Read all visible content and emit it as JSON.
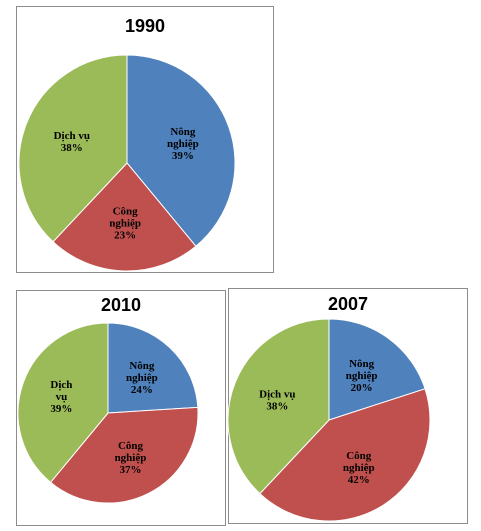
{
  "chart_data": [
    {
      "type": "pie",
      "title": "1990",
      "slices": [
        {
          "label": [
            "Nông",
            "nghiệp",
            "39%"
          ],
          "name": "Nông nghiệp",
          "value": 39,
          "color": "#4f81bd"
        },
        {
          "label": [
            "Công",
            "nghiệp",
            "23%"
          ],
          "name": "Công nghiệp",
          "value": 23,
          "color": "#c0504d"
        },
        {
          "label": [
            "Dịch vụ",
            "38%"
          ],
          "name": "Dịch vụ",
          "value": 38,
          "color": "#9bbb59"
        }
      ]
    },
    {
      "type": "pie",
      "title": "2010",
      "slices": [
        {
          "label": [
            "Nông",
            "nghiệp",
            "24%"
          ],
          "name": "Nông nghiệp",
          "value": 24,
          "color": "#4f81bd"
        },
        {
          "label": [
            "Công",
            "nghiệp",
            "37%"
          ],
          "name": "Công nghiệp",
          "value": 37,
          "color": "#c0504d"
        },
        {
          "label": [
            "Dịch",
            "vụ",
            "39%"
          ],
          "name": "Dịch vụ",
          "value": 39,
          "color": "#9bbb59"
        }
      ]
    },
    {
      "type": "pie",
      "title": "2007",
      "slices": [
        {
          "label": [
            "Nông",
            "nghiệp",
            "20%"
          ],
          "name": "Nông nghiệp",
          "value": 20,
          "color": "#4f81bd"
        },
        {
          "label": [
            "Công",
            "nghiệp",
            "42%"
          ],
          "name": "Công nghiệp",
          "value": 42,
          "color": "#c0504d"
        },
        {
          "label": [
            "Dịch vụ",
            "38%"
          ],
          "name": "Dịch vụ",
          "value": 38,
          "color": "#9bbb59"
        }
      ]
    }
  ]
}
